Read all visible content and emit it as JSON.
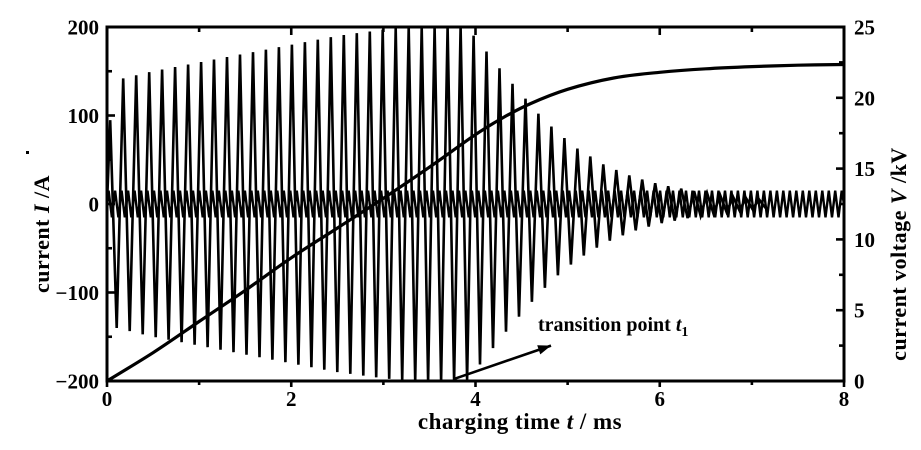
{
  "colors": {
    "ink": "#000000",
    "background": "#ffffff"
  },
  "chart_data": {
    "type": "line",
    "title": "",
    "grid": false,
    "legend": null,
    "xlabel": {
      "pre": "charging time ",
      "var": "t",
      "post": " / ms"
    },
    "ylabel_left": {
      "pre": "current ",
      "var": "I",
      "post": " /A"
    },
    "ylabel_right": {
      "pre": "current voltage ",
      "var": "V",
      "post": " /kV"
    },
    "x_axis": {
      "range": [
        0,
        8
      ],
      "major_ticks": [
        0,
        2,
        4,
        6,
        8
      ],
      "minor_ticks": [
        1,
        3,
        5,
        7
      ]
    },
    "y_axis_left": {
      "range": [
        -200,
        200
      ],
      "major_ticks": [
        -200,
        -100,
        0,
        100,
        200
      ],
      "minor_ticks": [
        -150,
        -50,
        50,
        150
      ]
    },
    "y_axis_right": {
      "range": [
        0,
        25
      ],
      "major_ticks": [
        0,
        5,
        10,
        15,
        20,
        25
      ],
      "minor_ticks": [
        2.5,
        7.5,
        12.5,
        17.5,
        22.5
      ]
    },
    "series": [
      {
        "name": "oscillating current",
        "axis": "left",
        "style": "oscillation",
        "main_cycles_per_ms": 7.1,
        "ripple_cycles_per_ms": 14.2,
        "ripple_amplitude_A": 15,
        "envelope_t_ms_amplitude_A": [
          [
            0,
            70
          ],
          [
            0.1,
            140
          ],
          [
            0.5,
            150
          ],
          [
            1.0,
            160
          ],
          [
            1.5,
            170
          ],
          [
            2.0,
            180
          ],
          [
            2.5,
            190
          ],
          [
            3.0,
            197
          ],
          [
            3.3,
            200
          ],
          [
            3.9,
            200
          ],
          [
            4.1,
            175
          ],
          [
            4.3,
            148
          ],
          [
            4.5,
            124
          ],
          [
            4.7,
            100
          ],
          [
            4.9,
            80
          ],
          [
            5.1,
            63
          ],
          [
            5.4,
            44
          ],
          [
            5.7,
            31
          ],
          [
            6.0,
            22
          ],
          [
            6.4,
            14
          ],
          [
            6.8,
            8
          ],
          [
            7.2,
            4
          ]
        ]
      },
      {
        "name": "charging voltage",
        "axis": "right",
        "style": "smooth",
        "points_t_ms_kV": [
          [
            0,
            0
          ],
          [
            0.5,
            2.0
          ],
          [
            1.0,
            4.2
          ],
          [
            1.5,
            6.4
          ],
          [
            2.0,
            8.7
          ],
          [
            2.5,
            10.8
          ],
          [
            3.0,
            12.9
          ],
          [
            3.5,
            15.1
          ],
          [
            4.0,
            17.4
          ],
          [
            4.3,
            18.6
          ],
          [
            4.6,
            19.6
          ],
          [
            5.0,
            20.6
          ],
          [
            5.5,
            21.4
          ],
          [
            6.0,
            21.8
          ],
          [
            6.5,
            22.05
          ],
          [
            7.0,
            22.2
          ],
          [
            7.5,
            22.3
          ],
          [
            8.0,
            22.35
          ]
        ]
      }
    ],
    "annotation": {
      "text_pre": "transition point ",
      "text_var": "t",
      "text_sub": "1",
      "arrow_tail_data_t_I": [
        3.76,
        -198
      ],
      "arrow_head_data_t_I": [
        4.82,
        -160
      ]
    }
  }
}
